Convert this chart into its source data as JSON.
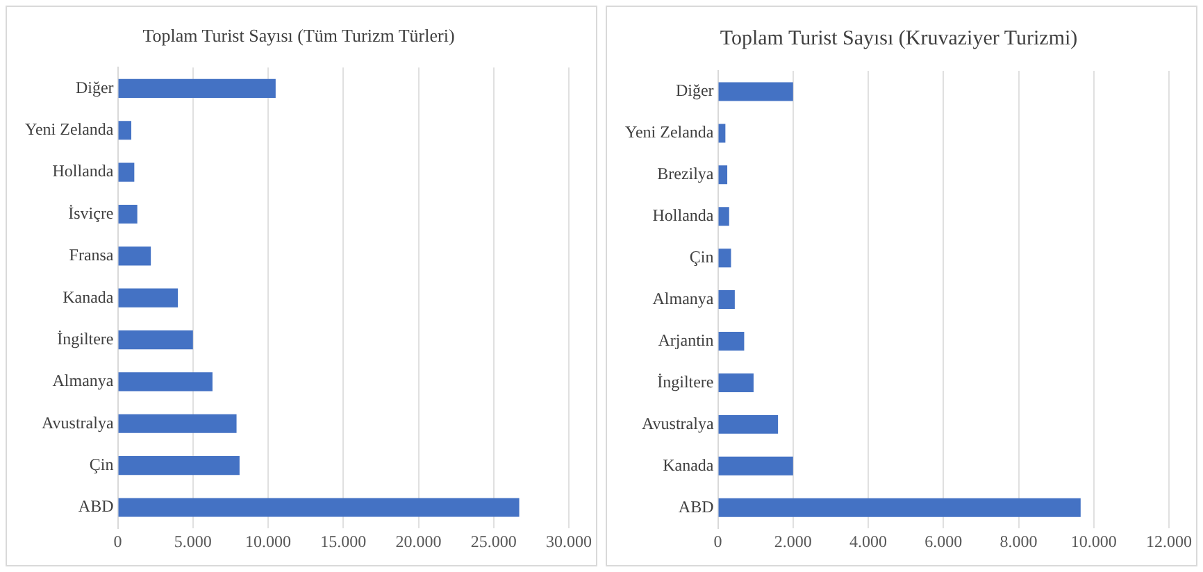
{
  "chart_data": [
    {
      "type": "bar",
      "orientation": "horizontal",
      "title": "Toplam Turist Sayısı (Tüm Turizm Türleri)",
      "categories": [
        "Diğer",
        "Yeni Zelanda",
        "Hollanda",
        "İsviçre",
        "Fransa",
        "Kanada",
        "İngiltere",
        "Almanya",
        "Avustralya",
        "Çin",
        "ABD"
      ],
      "values": [
        10500,
        900,
        1100,
        1300,
        2200,
        4000,
        5000,
        6300,
        7900,
        8100,
        26700
      ],
      "color": "#4472c4",
      "xlim": [
        0,
        30000
      ],
      "xticks": [
        0,
        {
          "value": 5000,
          "label": "5.000"
        },
        {
          "value": 10000,
          "label": "10.000"
        },
        {
          "value": 15000,
          "label": "15.000"
        },
        {
          "value": 20000,
          "label": "20.000"
        },
        {
          "value": 25000,
          "label": "25.000"
        },
        {
          "value": 30000,
          "label": "30.000"
        }
      ],
      "grid": "x"
    },
    {
      "type": "bar",
      "orientation": "horizontal",
      "title": "Toplam Turist Sayısı (Kruvaziyer Turizmi)",
      "categories": [
        "Diğer",
        "Yeni Zelanda",
        "Brezilya",
        "Hollanda",
        "Çin",
        "Almanya",
        "Arjantin",
        "İngiltere",
        "Avustralya",
        "Kanada",
        "ABD"
      ],
      "values": [
        2000,
        200,
        250,
        300,
        350,
        450,
        700,
        950,
        1600,
        2000,
        9650
      ],
      "color": "#4472c4",
      "xlim": [
        0,
        12000
      ],
      "xticks": [
        0,
        {
          "value": 2000,
          "label": "2.000"
        },
        {
          "value": 4000,
          "label": "4.000"
        },
        {
          "value": 6000,
          "label": "6.000"
        },
        {
          "value": 8000,
          "label": "8.000"
        },
        {
          "value": 10000,
          "label": "10.000"
        },
        {
          "value": 12000,
          "label": "12.000"
        }
      ],
      "grid": "x"
    }
  ]
}
